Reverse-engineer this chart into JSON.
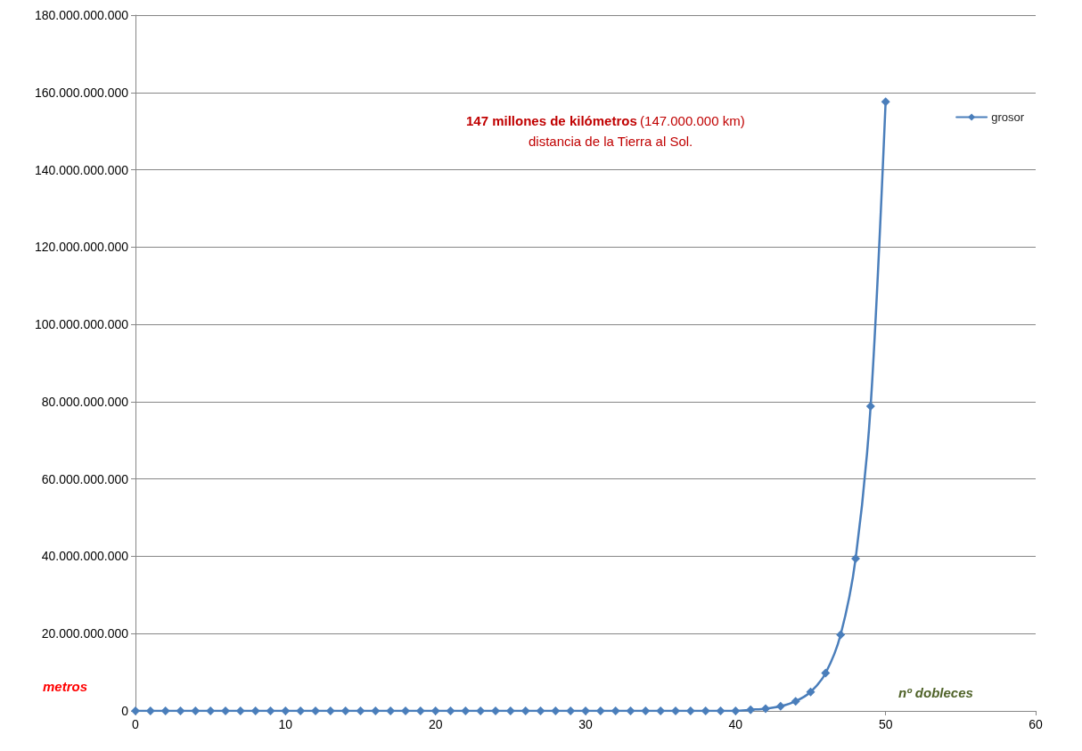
{
  "chart_data": {
    "type": "line",
    "x": [
      0,
      1,
      2,
      3,
      4,
      5,
      6,
      7,
      8,
      9,
      10,
      11,
      12,
      13,
      14,
      15,
      16,
      17,
      18,
      19,
      20,
      21,
      22,
      23,
      24,
      25,
      26,
      27,
      28,
      29,
      30,
      31,
      32,
      33,
      34,
      35,
      36,
      37,
      38,
      39,
      40,
      41,
      42,
      43,
      44,
      45,
      46,
      47,
      48,
      49,
      50
    ],
    "series": [
      {
        "name": "grosor",
        "color": "#4a7ebb",
        "values": [
          0,
          0,
          0,
          0,
          0,
          0,
          0,
          0,
          0,
          0,
          0,
          0,
          0,
          0,
          0,
          0,
          0,
          0,
          0,
          0,
          0,
          0,
          0,
          0,
          0,
          0,
          0,
          0,
          0,
          0,
          0,
          0,
          0,
          0,
          0,
          0,
          0,
          0,
          0,
          0,
          0,
          300000000,
          600000000,
          1200000000,
          2500000000,
          4900000000,
          9800000000,
          19700000000,
          39400000000,
          78800000000,
          157600000000
        ]
      }
    ],
    "xlabel": "nº dobleces",
    "ylabel": "metros",
    "annotations": [
      "147 millones de kilómetros",
      "(147.000.000 km)",
      "distancia de la Tierra al Sol."
    ],
    "xlim": [
      0,
      60
    ],
    "xticks": [
      0,
      10,
      20,
      30,
      40,
      50,
      60
    ],
    "ylim": [
      0,
      180000000000
    ],
    "yticks": [
      {
        "value": 0,
        "label": "0"
      },
      {
        "value": 20000000000,
        "label": "20.000.000.000"
      },
      {
        "value": 40000000000,
        "label": "40.000.000.000"
      },
      {
        "value": 60000000000,
        "label": "60.000.000.000"
      },
      {
        "value": 80000000000,
        "label": "80.000.000.000"
      },
      {
        "value": 100000000000,
        "label": "100.000.000.000"
      },
      {
        "value": 120000000000,
        "label": "120.000.000.000"
      },
      {
        "value": 140000000000,
        "label": "140.000.000.000"
      },
      {
        "value": 160000000000,
        "label": "160.000.000.000"
      },
      {
        "value": 180000000000,
        "label": "180.000.000.000"
      }
    ],
    "grid": "y",
    "legend": "top right",
    "marker": "diamond",
    "line_style": "solid"
  }
}
